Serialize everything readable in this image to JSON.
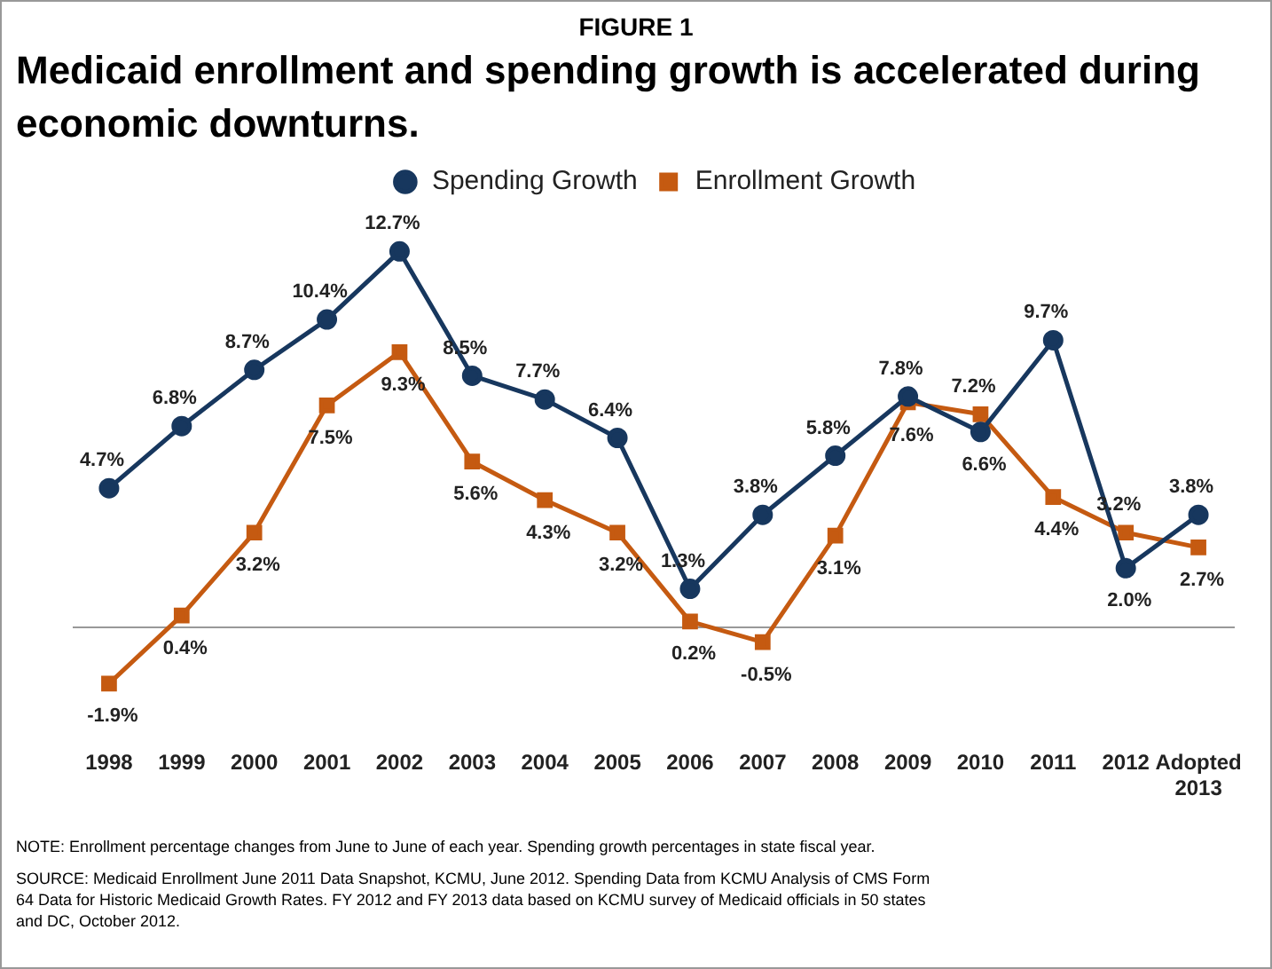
{
  "chart_data": {
    "type": "line",
    "subtitle": "FIGURE 1",
    "title": "Medicaid enrollment and spending growth is accelerated during economic downturns.",
    "categories": [
      "1998",
      "1999",
      "2000",
      "2001",
      "2002",
      "2003",
      "2004",
      "2005",
      "2006",
      "2007",
      "2008",
      "2009",
      "2010",
      "2011",
      "2012",
      "Adopted\n2013"
    ],
    "series": [
      {
        "name": "Spending Growth",
        "color": "#17375e",
        "marker": "circle",
        "values": [
          4.7,
          6.8,
          8.7,
          10.4,
          12.7,
          8.5,
          7.7,
          6.4,
          1.3,
          3.8,
          5.8,
          7.8,
          6.6,
          9.7,
          2.0,
          3.8
        ],
        "value_labels": [
          "4.7%",
          "6.8%",
          "8.7%",
          "10.4%",
          "12.7%",
          "8.5%",
          "7.7%",
          "6.4%",
          "1.3%",
          "3.8%",
          "5.8%",
          "7.8%",
          "6.6%",
          "9.7%",
          "2.0%",
          "3.8%"
        ]
      },
      {
        "name": "Enrollment Growth",
        "color": "#c55a11",
        "marker": "square",
        "values": [
          -1.9,
          0.4,
          3.2,
          7.5,
          9.3,
          5.6,
          4.3,
          3.2,
          0.2,
          -0.5,
          3.1,
          7.6,
          7.2,
          4.4,
          3.2,
          2.7
        ],
        "value_labels": [
          "-1.9%",
          "0.4%",
          "3.2%",
          "7.5%",
          "9.3%",
          "5.6%",
          "4.3%",
          "3.2%",
          "0.2%",
          "-0.5%",
          "3.1%",
          "7.6%",
          "7.2%",
          "4.4%",
          "3.2%",
          "2.7%"
        ]
      }
    ],
    "legend": "top",
    "grid": false,
    "line_style": "solid",
    "annotations": [
      "NOTE: Enrollment percentage changes from June to June of each year.  Spending growth percentages in state fiscal year.",
      "SOURCE: Medicaid Enrollment June 2011 Data Snapshot, KCMU, June 2012. Spending Data from KCMU Analysis of CMS Form 64 Data for Historic Medicaid Growth Rates.  FY 2012 and FY 2013 data based on KCMU survey of Medicaid officials in 50 states and DC, October 2012."
    ]
  }
}
